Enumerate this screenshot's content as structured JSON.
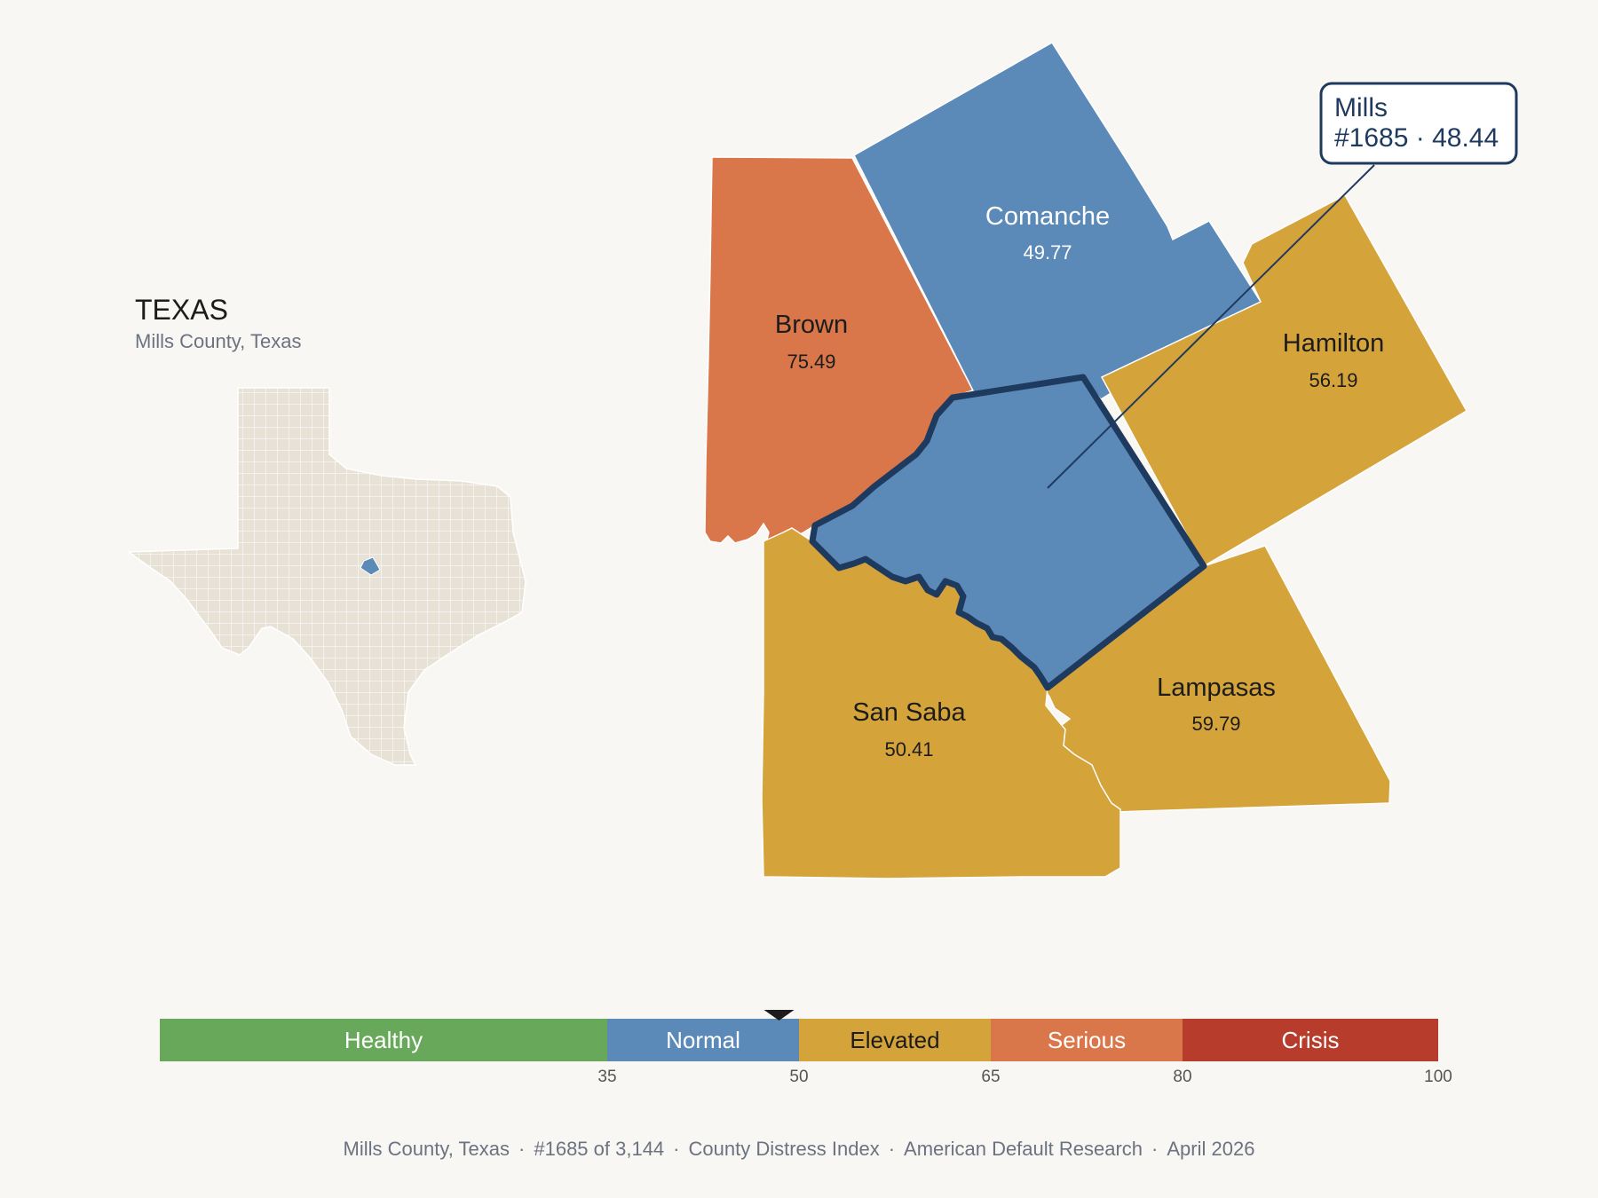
{
  "inset": {
    "state_title": "TEXAS",
    "subtitle": "Mills County, Texas"
  },
  "counties": [
    {
      "name": "Brown",
      "score": "75.49",
      "color": "#d9764a",
      "label_color": "dark"
    },
    {
      "name": "Comanche",
      "score": "49.77",
      "color": "#5b89b8",
      "label_color": "light"
    },
    {
      "name": "Hamilton",
      "score": "56.19",
      "color": "#d4a33a",
      "label_color": "dark"
    },
    {
      "name": "Lampasas",
      "score": "59.79",
      "color": "#d4a33a",
      "label_color": "dark"
    },
    {
      "name": "San Saba",
      "score": "50.41",
      "color": "#d4a33a",
      "label_color": "dark"
    },
    {
      "name": "Mills",
      "score": "48.44",
      "color": "#5b89b8",
      "highlight": true
    }
  ],
  "callout": {
    "line1": "Mills",
    "line2": "#1685 · 48.44"
  },
  "legend": {
    "min": 0,
    "max": 100,
    "marker_value": 48.44,
    "segments": [
      {
        "label": "Healthy",
        "from": 0,
        "to": 35,
        "color": "#68a85a",
        "text_color": "#ffffff"
      },
      {
        "label": "Normal",
        "from": 35,
        "to": 50,
        "color": "#5b89b8",
        "text_color": "#ffffff"
      },
      {
        "label": "Elevated",
        "from": 50,
        "to": 65,
        "color": "#d4a33a",
        "text_color": "#1c1c1c"
      },
      {
        "label": "Serious",
        "from": 65,
        "to": 80,
        "color": "#d9764a",
        "text_color": "#ffffff"
      },
      {
        "label": "Crisis",
        "from": 80,
        "to": 100,
        "color": "#b83c2c",
        "text_color": "#ffffff"
      }
    ],
    "ticks": [
      "35",
      "50",
      "65",
      "80",
      "100"
    ]
  },
  "footer": {
    "county": "Mills County, Texas",
    "rank": "#1685 of 3,144",
    "index": "County Distress Index",
    "source": "American Default Research",
    "date": "April 2026"
  }
}
